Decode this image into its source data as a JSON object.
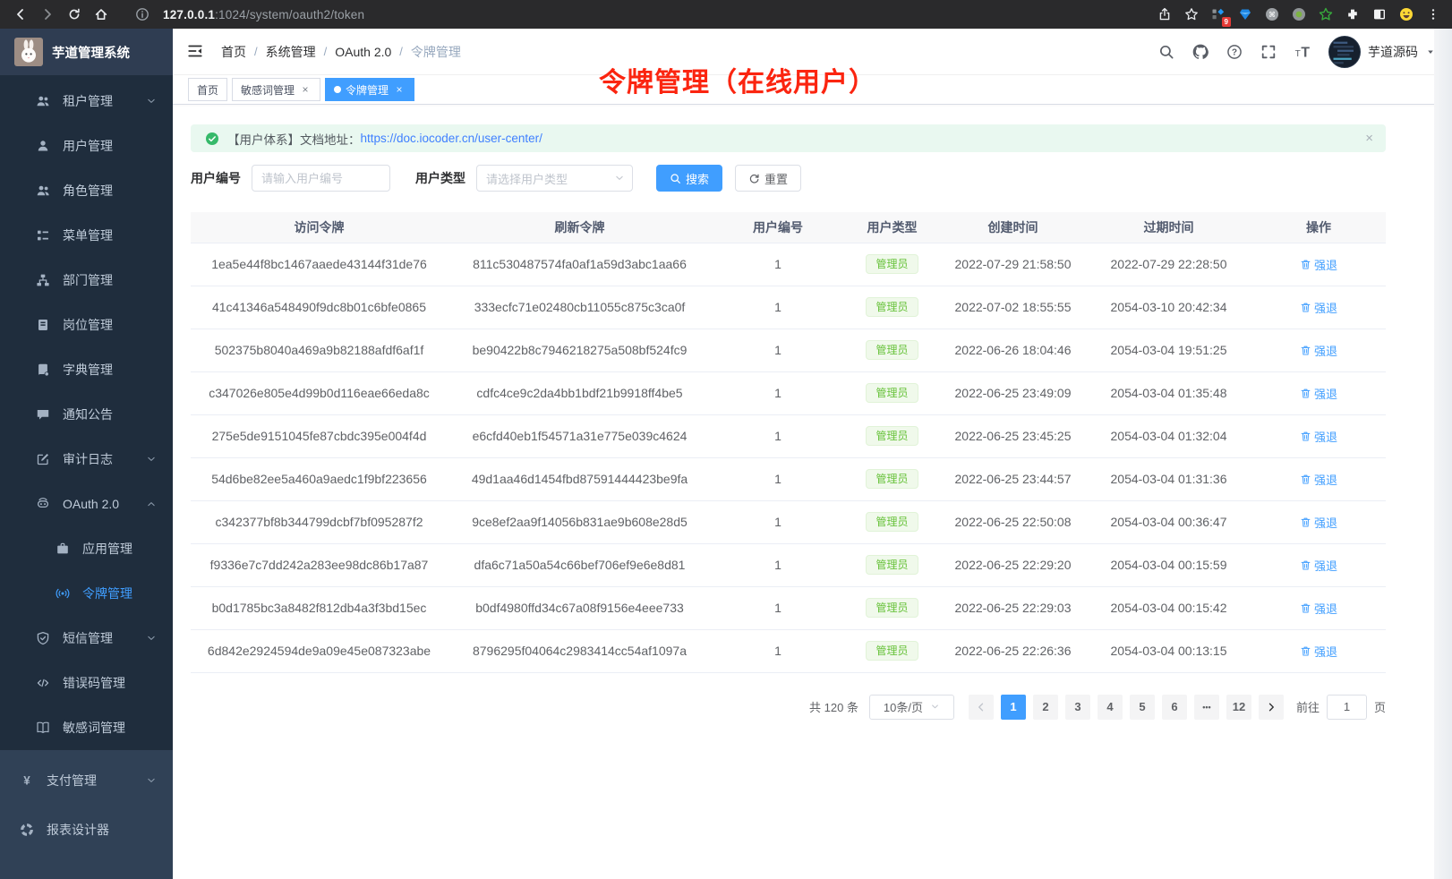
{
  "browser": {
    "url_host": "127.0.0.1",
    "url_path": ":1024/system/oauth2/token",
    "extension_badge": "9"
  },
  "sidebar": {
    "title": "芋道管理系统",
    "menu": [
      {
        "label": "租户管理",
        "icon": "users-icon",
        "arrow": "down"
      },
      {
        "label": "用户管理",
        "icon": "user-icon"
      },
      {
        "label": "角色管理",
        "icon": "role-icon"
      },
      {
        "label": "菜单管理",
        "icon": "menu-tree-icon"
      },
      {
        "label": "部门管理",
        "icon": "dept-icon"
      },
      {
        "label": "岗位管理",
        "icon": "post-icon"
      },
      {
        "label": "字典管理",
        "icon": "dict-icon"
      },
      {
        "label": "通知公告",
        "icon": "notice-icon"
      },
      {
        "label": "审计日志",
        "icon": "log-icon",
        "arrow": "down"
      },
      {
        "label": "OAuth 2.0",
        "icon": "oauth-icon",
        "arrow": "up"
      },
      {
        "label": "应用管理",
        "icon": "app-icon",
        "child": true
      },
      {
        "label": "令牌管理",
        "icon": "token-icon",
        "child": true,
        "active": true
      },
      {
        "label": "短信管理",
        "icon": "sms-icon",
        "arrow": "down"
      },
      {
        "label": "错误码管理",
        "icon": "errcode-icon"
      },
      {
        "label": "敏感词管理",
        "icon": "sensitive-icon"
      }
    ],
    "bottom": [
      {
        "label": "支付管理",
        "icon": "pay-icon",
        "arrow": "down"
      },
      {
        "label": "报表设计器",
        "icon": "report-icon"
      }
    ]
  },
  "header": {
    "breadcrumb": [
      "首页",
      "系统管理",
      "OAuth 2.0",
      "令牌管理"
    ],
    "username": "芋道源码"
  },
  "tabs": [
    {
      "label": "首页"
    },
    {
      "label": "敏感词管理",
      "closable": true
    },
    {
      "label": "令牌管理",
      "closable": true,
      "active": true
    }
  ],
  "annotation": "令牌管理（在线用户）",
  "alert": {
    "text": "【用户体系】文档地址：",
    "link": "https://doc.iocoder.cn/user-center/"
  },
  "filters": {
    "user_id_label": "用户编号",
    "user_id_placeholder": "请输入用户编号",
    "user_type_label": "用户类型",
    "user_type_placeholder": "请选择用户类型",
    "search_label": "搜索",
    "reset_label": "重置"
  },
  "table": {
    "columns": [
      "访问令牌",
      "刷新令牌",
      "用户编号",
      "用户类型",
      "创建时间",
      "过期时间",
      "操作"
    ],
    "action_label": "强退",
    "rows": [
      {
        "access": "1ea5e44f8bc1467aaede43144f31de76",
        "refresh": "811c530487574fa0af1a59d3abc1aa66",
        "user_id": "1",
        "user_type": "管理员",
        "created": "2022-07-29 21:58:50",
        "expires": "2022-07-29 22:28:50"
      },
      {
        "access": "41c41346a548490f9dc8b01c6bfe0865",
        "refresh": "333ecfc71e02480cb11055c875c3ca0f",
        "user_id": "1",
        "user_type": "管理员",
        "created": "2022-07-02 18:55:55",
        "expires": "2054-03-10 20:42:34"
      },
      {
        "access": "502375b8040a469a9b82188afdf6af1f",
        "refresh": "be90422b8c7946218275a508bf524fc9",
        "user_id": "1",
        "user_type": "管理员",
        "created": "2022-06-26 18:04:46",
        "expires": "2054-03-04 19:51:25"
      },
      {
        "access": "c347026e805e4d99b0d116eae66eda8c",
        "refresh": "cdfc4ce9c2da4bb1bdf21b9918ff4be5",
        "user_id": "1",
        "user_type": "管理员",
        "created": "2022-06-25 23:49:09",
        "expires": "2054-03-04 01:35:48"
      },
      {
        "access": "275e5de9151045fe87cbdc395e004f4d",
        "refresh": "e6cfd40eb1f54571a31e775e039c4624",
        "user_id": "1",
        "user_type": "管理员",
        "created": "2022-06-25 23:45:25",
        "expires": "2054-03-04 01:32:04"
      },
      {
        "access": "54d6be82ee5a460a9aedc1f9bf223656",
        "refresh": "49d1aa46d1454fbd87591444423be9fa",
        "user_id": "1",
        "user_type": "管理员",
        "created": "2022-06-25 23:44:57",
        "expires": "2054-03-04 01:31:36"
      },
      {
        "access": "c342377bf8b344799dcbf7bf095287f2",
        "refresh": "9ce8ef2aa9f14056b831ae9b608e28d5",
        "user_id": "1",
        "user_type": "管理员",
        "created": "2022-06-25 22:50:08",
        "expires": "2054-03-04 00:36:47"
      },
      {
        "access": "f9336e7c7dd242a283ee98dc86b17a87",
        "refresh": "dfa6c71a50a54c66bef706ef9e6e8d81",
        "user_id": "1",
        "user_type": "管理员",
        "created": "2022-06-25 22:29:20",
        "expires": "2054-03-04 00:15:59"
      },
      {
        "access": "b0d1785bc3a8482f812db4a3f3bd15ec",
        "refresh": "b0df4980ffd34c67a08f9156e4eee733",
        "user_id": "1",
        "user_type": "管理员",
        "created": "2022-06-25 22:29:03",
        "expires": "2054-03-04 00:15:42"
      },
      {
        "access": "6d842e2924594de9a09e45e087323abe",
        "refresh": "8796295f04064c2983414cc54af1097a",
        "user_id": "1",
        "user_type": "管理员",
        "created": "2022-06-25 22:26:36",
        "expires": "2054-03-04 00:13:15"
      }
    ]
  },
  "pagination": {
    "total": "共 120 条",
    "per_page": "10条/页",
    "pages": [
      "1",
      "2",
      "3",
      "4",
      "5",
      "6",
      "...",
      "12"
    ],
    "current": "1",
    "goto_label": "前往",
    "goto_value": "1",
    "goto_suffix": "页"
  },
  "colors": {
    "accent": "#409eff",
    "success": "#67c23a",
    "annotation_red": "#fb2510"
  }
}
